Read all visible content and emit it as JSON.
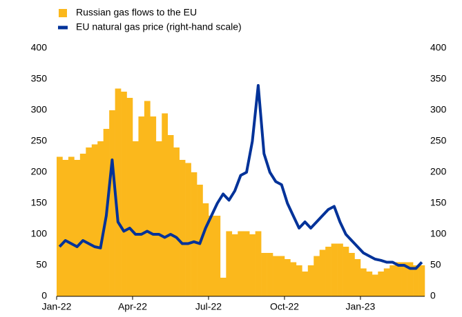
{
  "chart_data": {
    "type": "bar",
    "categories": [
      "Jan-22",
      null,
      null,
      null,
      null,
      null,
      null,
      null,
      null,
      null,
      null,
      null,
      null,
      "Apr-22",
      null,
      null,
      null,
      null,
      null,
      null,
      null,
      null,
      null,
      null,
      null,
      null,
      "Jul-22",
      null,
      null,
      null,
      null,
      null,
      null,
      null,
      null,
      null,
      null,
      null,
      null,
      "Oct-22",
      null,
      null,
      null,
      null,
      null,
      null,
      null,
      null,
      null,
      null,
      null,
      null,
      "Jan-23",
      null,
      null,
      null,
      null,
      null,
      null,
      null,
      null,
      null,
      null
    ],
    "series": [
      {
        "name": "Russian gas flows to the EU",
        "type": "bar",
        "color": "#fbb81c",
        "values": [
          225,
          220,
          225,
          220,
          230,
          240,
          245,
          250,
          270,
          300,
          335,
          330,
          320,
          250,
          290,
          315,
          290,
          250,
          295,
          260,
          240,
          220,
          215,
          200,
          180,
          150,
          130,
          130,
          30,
          105,
          100,
          105,
          105,
          100,
          105,
          70,
          70,
          65,
          65,
          60,
          55,
          50,
          40,
          50,
          65,
          75,
          80,
          85,
          85,
          80,
          70,
          60,
          45,
          40,
          35,
          40,
          45,
          50,
          55,
          55,
          55,
          50,
          50
        ]
      },
      {
        "name": "EU natural gas price (right-hand scale)",
        "type": "line",
        "axis": "y2",
        "color": "#003299",
        "values": [
          80,
          90,
          85,
          80,
          90,
          85,
          80,
          78,
          130,
          220,
          120,
          105,
          110,
          100,
          100,
          105,
          100,
          100,
          95,
          100,
          95,
          85,
          85,
          88,
          85,
          110,
          130,
          150,
          165,
          155,
          170,
          195,
          200,
          250,
          340,
          230,
          200,
          185,
          180,
          150,
          130,
          110,
          120,
          110,
          120,
          130,
          140,
          145,
          120,
          100,
          90,
          80,
          70,
          65,
          60,
          58,
          55,
          55,
          50,
          50,
          45,
          45,
          55
        ]
      }
    ],
    "ylim": [
      0,
      400
    ],
    "yticks": [
      0,
      50,
      100,
      150,
      200,
      250,
      300,
      350,
      400
    ],
    "y2lim": [
      0,
      400
    ],
    "y2ticks": [
      0,
      50,
      100,
      150,
      200,
      250,
      300,
      350,
      400
    ],
    "legend": "top-left"
  }
}
